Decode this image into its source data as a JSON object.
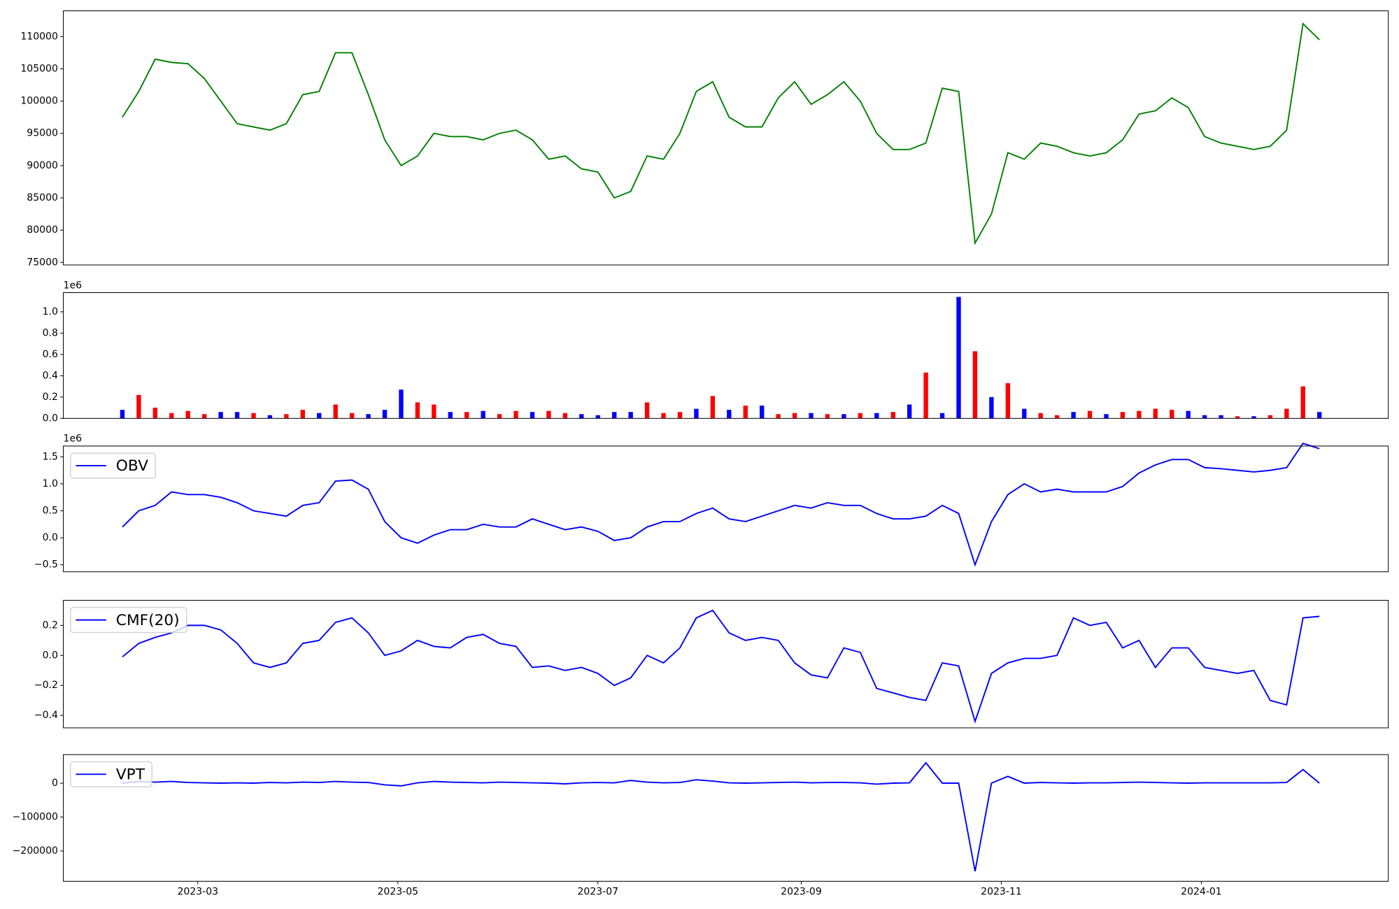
{
  "chart_data": [
    {
      "type": "line",
      "color": "green",
      "grid": false,
      "xlim": [
        19376,
        19780
      ],
      "ylim": [
        74600,
        114000
      ],
      "yticks": [
        75000,
        80000,
        85000,
        90000,
        95000,
        100000,
        105000,
        110000
      ],
      "x": [
        19394,
        19399,
        19404,
        19409,
        19414,
        19419,
        19424,
        19429,
        19434,
        19439,
        19444,
        19449,
        19454,
        19459,
        19464,
        19469,
        19474,
        19479,
        19484,
        19489,
        19494,
        19499,
        19504,
        19509,
        19514,
        19519,
        19524,
        19529,
        19534,
        19539,
        19544,
        19549,
        19554,
        19559,
        19564,
        19569,
        19574,
        19579,
        19584,
        19589,
        19594,
        19599,
        19604,
        19609,
        19614,
        19619,
        19624,
        19629,
        19634,
        19639,
        19644,
        19649,
        19654,
        19659,
        19664,
        19669,
        19674,
        19679,
        19684,
        19689,
        19694,
        19699,
        19704,
        19709,
        19714,
        19719,
        19724,
        19729,
        19734,
        19739,
        19744,
        19749,
        19754,
        19759
      ],
      "values": [
        97500,
        101500,
        106500,
        106000,
        105800,
        103500,
        100000,
        96500,
        96000,
        95500,
        96500,
        101000,
        101500,
        107500,
        107500,
        101000,
        94000,
        90000,
        91500,
        95000,
        94500,
        94500,
        94000,
        95000,
        95500,
        94000,
        91000,
        91500,
        89500,
        89000,
        85000,
        86000,
        91500,
        91000,
        95000,
        101500,
        103000,
        97500,
        96000,
        96000,
        100500,
        103000,
        99500,
        101000,
        103000,
        100000,
        95000,
        92500,
        92500,
        93500,
        102000,
        101500,
        78000,
        82500,
        92000,
        91000,
        93500,
        93000,
        92000,
        91500,
        92000,
        94000,
        98000,
        98500,
        100500,
        99000,
        94500,
        93500,
        93000,
        92500,
        93000,
        95500,
        112000,
        109500
      ]
    },
    {
      "type": "bar",
      "grid": false,
      "offset_label": "1e6",
      "xlim": [
        19376,
        19780
      ],
      "ylim": [
        0,
        1180000
      ],
      "yticks": [
        {
          "value": 0,
          "label": "0.0"
        },
        {
          "value": 200000,
          "label": "0.2"
        },
        {
          "value": 400000,
          "label": "0.4"
        },
        {
          "value": 600000,
          "label": "0.6"
        },
        {
          "value": 800000,
          "label": "0.8"
        },
        {
          "value": 1000000,
          "label": "1.0"
        }
      ],
      "x": [
        19394,
        19399,
        19404,
        19409,
        19414,
        19419,
        19424,
        19429,
        19434,
        19439,
        19444,
        19449,
        19454,
        19459,
        19464,
        19469,
        19474,
        19479,
        19484,
        19489,
        19494,
        19499,
        19504,
        19509,
        19514,
        19519,
        19524,
        19529,
        19534,
        19539,
        19544,
        19549,
        19554,
        19559,
        19564,
        19569,
        19574,
        19579,
        19584,
        19589,
        19594,
        19599,
        19604,
        19609,
        19614,
        19619,
        19624,
        19629,
        19634,
        19639,
        19644,
        19649,
        19654,
        19659,
        19664,
        19669,
        19674,
        19679,
        19684,
        19689,
        19694,
        19699,
        19704,
        19709,
        19714,
        19719,
        19724,
        19729,
        19734,
        19739,
        19744,
        19749,
        19754,
        19759
      ],
      "values": [
        80000,
        220000,
        100000,
        50000,
        70000,
        40000,
        60000,
        60000,
        50000,
        30000,
        40000,
        80000,
        50000,
        130000,
        50000,
        40000,
        80000,
        270000,
        150000,
        130000,
        60000,
        60000,
        70000,
        40000,
        70000,
        60000,
        70000,
        50000,
        40000,
        30000,
        60000,
        60000,
        150000,
        50000,
        60000,
        90000,
        210000,
        80000,
        120000,
        120000,
        40000,
        50000,
        50000,
        40000,
        40000,
        50000,
        50000,
        60000,
        130000,
        430000,
        50000,
        1140000,
        630000,
        200000,
        330000,
        90000,
        50000,
        30000,
        60000,
        70000,
        40000,
        60000,
        70000,
        90000,
        80000,
        70000,
        30000,
        30000,
        20000,
        20000,
        30000,
        90000,
        300000,
        60000
      ],
      "colors": [
        "blue",
        "red",
        "red",
        "red",
        "red",
        "red",
        "blue",
        "blue",
        "red",
        "blue",
        "red",
        "red",
        "blue",
        "red",
        "red",
        "blue",
        "blue",
        "blue",
        "red",
        "red",
        "blue",
        "red",
        "blue",
        "red",
        "red",
        "blue",
        "red",
        "red",
        "blue",
        "blue",
        "blue",
        "blue",
        "red",
        "red",
        "red",
        "blue",
        "red",
        "blue",
        "red",
        "blue",
        "red",
        "red",
        "blue",
        "red",
        "blue",
        "red",
        "blue",
        "red",
        "blue",
        "red",
        "blue",
        "blue",
        "red",
        "blue",
        "red",
        "blue",
        "red",
        "red",
        "blue",
        "red",
        "blue",
        "red",
        "red",
        "red",
        "red",
        "blue",
        "blue",
        "blue",
        "red",
        "blue",
        "red",
        "red",
        "red",
        "blue"
      ]
    },
    {
      "type": "line",
      "grid": false,
      "offset_label": "1e6",
      "legend": "upper left",
      "xlim": [
        19376,
        19780
      ],
      "ylim": [
        -630000,
        1700000
      ],
      "yticks": [
        {
          "value": -500000,
          "label": "−0.5"
        },
        {
          "value": 0,
          "label": "0.0"
        },
        {
          "value": 500000,
          "label": "0.5"
        },
        {
          "value": 1000000,
          "label": "1.0"
        },
        {
          "value": 1500000,
          "label": "1.5"
        }
      ],
      "x": [
        19394,
        19399,
        19404,
        19409,
        19414,
        19419,
        19424,
        19429,
        19434,
        19439,
        19444,
        19449,
        19454,
        19459,
        19464,
        19469,
        19474,
        19479,
        19484,
        19489,
        19494,
        19499,
        19504,
        19509,
        19514,
        19519,
        19524,
        19529,
        19534,
        19539,
        19544,
        19549,
        19554,
        19559,
        19564,
        19569,
        19574,
        19579,
        19584,
        19589,
        19594,
        19599,
        19604,
        19609,
        19614,
        19619,
        19624,
        19629,
        19634,
        19639,
        19644,
        19649,
        19654,
        19659,
        19664,
        19669,
        19674,
        19679,
        19684,
        19689,
        19694,
        19699,
        19704,
        19709,
        19714,
        19719,
        19724,
        19729,
        19734,
        19739,
        19744,
        19749,
        19754,
        19759
      ],
      "series": [
        {
          "name": "OBV",
          "color": "blue",
          "values": [
            200000,
            500000,
            600000,
            850000,
            800000,
            800000,
            750000,
            650000,
            500000,
            450000,
            400000,
            600000,
            650000,
            1050000,
            1070000,
            900000,
            300000,
            0,
            -100000,
            50000,
            150000,
            150000,
            250000,
            200000,
            200000,
            350000,
            250000,
            150000,
            200000,
            120000,
            -50000,
            0,
            200000,
            300000,
            300000,
            450000,
            550000,
            350000,
            300000,
            400000,
            500000,
            600000,
            550000,
            650000,
            600000,
            600000,
            450000,
            350000,
            350000,
            400000,
            600000,
            450000,
            -500000,
            300000,
            800000,
            1000000,
            850000,
            900000,
            850000,
            850000,
            850000,
            950000,
            1200000,
            1350000,
            1450000,
            1450000,
            1300000,
            1280000,
            1250000,
            1220000,
            1250000,
            1300000,
            1750000,
            1650000
          ]
        }
      ]
    },
    {
      "type": "line",
      "grid": false,
      "legend": "upper left",
      "xlim": [
        19376,
        19780
      ],
      "ylim": [
        -0.483,
        0.367
      ],
      "yticks": [
        {
          "value": -0.4,
          "label": "−0.4"
        },
        {
          "value": -0.2,
          "label": "−0.2"
        },
        {
          "value": 0,
          "label": "0.0"
        },
        {
          "value": 0.2,
          "label": "0.2"
        }
      ],
      "x": [
        19394,
        19399,
        19404,
        19409,
        19414,
        19419,
        19424,
        19429,
        19434,
        19439,
        19444,
        19449,
        19454,
        19459,
        19464,
        19469,
        19474,
        19479,
        19484,
        19489,
        19494,
        19499,
        19504,
        19509,
        19514,
        19519,
        19524,
        19529,
        19534,
        19539,
        19544,
        19549,
        19554,
        19559,
        19564,
        19569,
        19574,
        19579,
        19584,
        19589,
        19594,
        19599,
        19604,
        19609,
        19614,
        19619,
        19624,
        19629,
        19634,
        19639,
        19644,
        19649,
        19654,
        19659,
        19664,
        19669,
        19674,
        19679,
        19684,
        19689,
        19694,
        19699,
        19704,
        19709,
        19714,
        19719,
        19724,
        19729,
        19734,
        19739,
        19744,
        19749,
        19754,
        19759
      ],
      "series": [
        {
          "name": "CMF(20)",
          "color": "blue",
          "values": [
            -0.01,
            0.08,
            0.12,
            0.15,
            0.2,
            0.2,
            0.17,
            0.08,
            -0.05,
            -0.08,
            -0.05,
            0.08,
            0.1,
            0.22,
            0.25,
            0.15,
            0.0,
            0.03,
            0.1,
            0.06,
            0.05,
            0.12,
            0.14,
            0.08,
            0.06,
            -0.08,
            -0.07,
            -0.1,
            -0.08,
            -0.12,
            -0.2,
            -0.15,
            0.0,
            -0.05,
            0.05,
            0.25,
            0.3,
            0.15,
            0.1,
            0.12,
            0.1,
            -0.05,
            -0.13,
            -0.15,
            0.05,
            0.02,
            -0.22,
            -0.25,
            -0.28,
            -0.3,
            -0.05,
            -0.07,
            -0.44,
            -0.12,
            -0.05,
            -0.02,
            -0.02,
            0.0,
            0.25,
            0.2,
            0.22,
            0.05,
            0.1,
            -0.08,
            0.05,
            0.05,
            -0.08,
            -0.1,
            -0.12,
            -0.1,
            -0.3,
            -0.33,
            0.25,
            0.26
          ]
        }
      ]
    },
    {
      "type": "line",
      "grid": false,
      "legend": "upper left",
      "xlim": [
        19376,
        19780
      ],
      "ylim": [
        -289500,
        84200
      ],
      "yticks": [
        {
          "value": -200000,
          "label": "−200000"
        },
        {
          "value": -100000,
          "label": "−100000"
        },
        0
      ],
      "xticks": [
        {
          "value": 19417,
          "label": "2023-03"
        },
        {
          "value": 19478,
          "label": "2023-05"
        },
        {
          "value": 19539,
          "label": "2023-07"
        },
        {
          "value": 19601,
          "label": "2023-09"
        },
        {
          "value": 19662,
          "label": "2023-11"
        },
        {
          "value": 19723,
          "label": "2024-01"
        }
      ],
      "x": [
        19394,
        19399,
        19404,
        19409,
        19414,
        19419,
        19424,
        19429,
        19434,
        19439,
        19444,
        19449,
        19454,
        19459,
        19464,
        19469,
        19474,
        19479,
        19484,
        19489,
        19494,
        19499,
        19504,
        19509,
        19514,
        19519,
        19524,
        19529,
        19534,
        19539,
        19544,
        19549,
        19554,
        19559,
        19564,
        19569,
        19574,
        19579,
        19584,
        19589,
        19594,
        19599,
        19604,
        19609,
        19614,
        19619,
        19624,
        19629,
        19634,
        19639,
        19644,
        19649,
        19654,
        19659,
        19664,
        19669,
        19674,
        19679,
        19684,
        19689,
        19694,
        19699,
        19704,
        19709,
        19714,
        19719,
        19724,
        19729,
        19734,
        19739,
        19744,
        19749,
        19754,
        19759
      ],
      "series": [
        {
          "name": "VPT",
          "color": "blue",
          "values": [
            0,
            5000,
            3000,
            5000,
            2000,
            1000,
            0,
            1000,
            0,
            2000,
            1000,
            3000,
            2000,
            5000,
            3000,
            2000,
            -5000,
            -8000,
            1000,
            5000,
            3000,
            2000,
            1000,
            3000,
            2000,
            1000,
            0,
            -2000,
            1000,
            2000,
            1000,
            8000,
            3000,
            1000,
            2000,
            10000,
            6000,
            1000,
            0,
            1000,
            2000,
            3000,
            1000,
            2000,
            2000,
            1000,
            -3000,
            0,
            1000,
            60000,
            0,
            0,
            -260000,
            0,
            20000,
            0,
            2000,
            1000,
            0,
            1000,
            1000,
            2000,
            3000,
            2000,
            1000,
            0,
            1000,
            1000,
            1000,
            1000,
            1000,
            2000,
            40000,
            0
          ]
        }
      ]
    }
  ]
}
